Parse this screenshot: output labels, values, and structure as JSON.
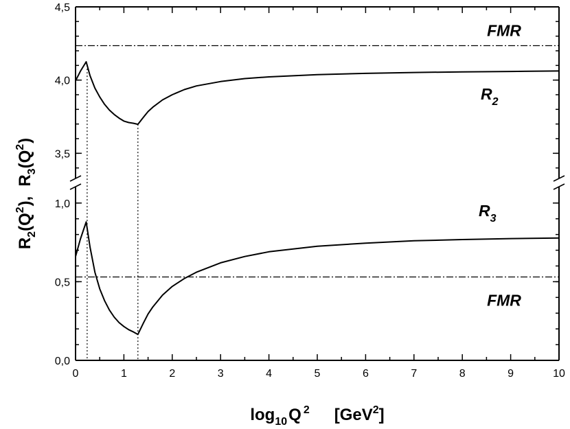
{
  "chart_data": {
    "type": "line",
    "xlabel": {
      "main": "log",
      "sub": "10",
      "q": "Q",
      "sup": "2",
      "unit_open": "[GeV",
      "unit_sup": "2",
      "unit_close": "]"
    },
    "ylabel": {
      "r2": "R",
      "r2_sub": "2",
      "r2_mid": "(Q",
      "r2_sup": "2",
      "r2_end": "),",
      "r3": "R",
      "r3_sub": "3",
      "r3_mid": "(Q",
      "r3_sup": "2",
      "r3_end": ")"
    },
    "xlim": [
      0,
      10
    ],
    "x_ticks": [
      0,
      1,
      2,
      3,
      4,
      5,
      6,
      7,
      8,
      9,
      10
    ],
    "x_tick_labels": [
      "0",
      "1",
      "2",
      "3",
      "4",
      "5",
      "6",
      "7",
      "8",
      "9",
      "10"
    ],
    "upper_panel": {
      "ylim": [
        3.3,
        4.5
      ],
      "y_ticks": [
        3.5,
        4.0,
        4.5
      ],
      "y_tick_labels": [
        "3,5",
        "4,0",
        "4,5"
      ]
    },
    "lower_panel": {
      "ylim": [
        0.0,
        1.13
      ],
      "y_ticks": [
        0.0,
        0.5,
        1.0
      ],
      "y_tick_labels": [
        "0,0",
        "0,5",
        "1,0"
      ]
    },
    "series": [
      {
        "name": "R2",
        "label_main": "R",
        "label_sub": "2",
        "panel": "upper",
        "x": [
          0.0,
          0.1,
          0.22,
          0.3,
          0.4,
          0.5,
          0.6,
          0.7,
          0.8,
          0.9,
          1.0,
          1.1,
          1.2,
          1.29,
          1.4,
          1.5,
          1.6,
          1.8,
          2.0,
          2.25,
          2.5,
          3.0,
          3.5,
          4.0,
          5.0,
          6.0,
          7.0,
          8.0,
          9.0,
          10.0
        ],
        "y": [
          3.995,
          4.06,
          4.125,
          4.03,
          3.945,
          3.885,
          3.835,
          3.795,
          3.765,
          3.74,
          3.72,
          3.71,
          3.705,
          3.698,
          3.745,
          3.785,
          3.815,
          3.865,
          3.9,
          3.935,
          3.96,
          3.99,
          4.01,
          4.022,
          4.037,
          4.046,
          4.052,
          4.056,
          4.059,
          4.062
        ]
      },
      {
        "name": "R3",
        "label_main": "R",
        "label_sub": "3",
        "panel": "lower",
        "x": [
          0.0,
          0.1,
          0.22,
          0.3,
          0.4,
          0.5,
          0.6,
          0.7,
          0.8,
          0.9,
          1.0,
          1.1,
          1.2,
          1.29,
          1.4,
          1.5,
          1.6,
          1.8,
          2.0,
          2.25,
          2.5,
          3.0,
          3.5,
          4.0,
          5.0,
          6.0,
          7.0,
          8.0,
          9.0,
          10.0
        ],
        "y": [
          0.66,
          0.77,
          0.88,
          0.72,
          0.56,
          0.455,
          0.38,
          0.32,
          0.275,
          0.24,
          0.215,
          0.195,
          0.18,
          0.165,
          0.235,
          0.295,
          0.34,
          0.415,
          0.47,
          0.52,
          0.56,
          0.62,
          0.66,
          0.69,
          0.725,
          0.745,
          0.76,
          0.768,
          0.774,
          0.778
        ]
      }
    ],
    "reference_lines": [
      {
        "name": "FMR",
        "label": "FMR",
        "panel": "upper",
        "y": 4.235,
        "style": "dash-dot"
      },
      {
        "name": "FMR",
        "label": "FMR",
        "panel": "lower",
        "y": 0.53,
        "style": "dash-dot"
      }
    ],
    "vertical_markers": [
      {
        "x": 0.24,
        "style": "dotted"
      },
      {
        "x": 1.29,
        "style": "dotted"
      }
    ]
  }
}
